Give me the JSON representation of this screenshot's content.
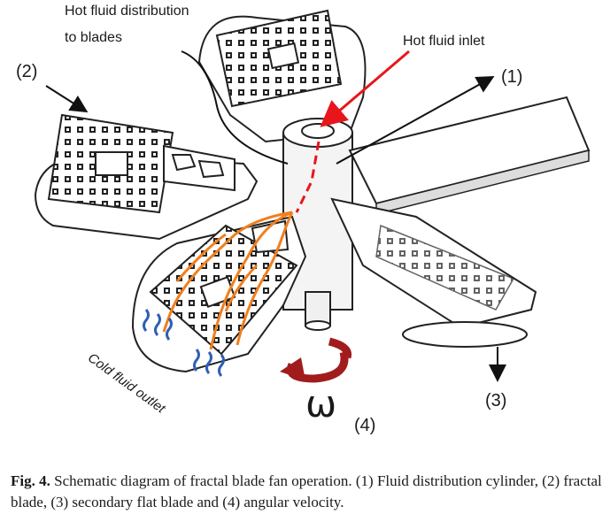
{
  "figure": {
    "labels": {
      "hot_fluid_distribution_line1": "Hot fluid distribution",
      "hot_fluid_distribution_line2": "to blades",
      "hot_fluid_inlet": "Hot fluid inlet",
      "marker_1": "(1)",
      "marker_2": "(2)",
      "marker_3": "(3)",
      "marker_4": "(4)",
      "omega": "ω",
      "cold_fluid_outlet": "Cold fluid outlet"
    },
    "colors": {
      "hot_fluid_path": "#e8161a",
      "distribution_channels": "#f07f1e",
      "cold_outlet_arrows": "#2f5fb4",
      "rotation_arrow": "#a11c1c",
      "line_art": "#222222"
    }
  },
  "caption": {
    "label": "Fig. 4.",
    "text": "Schematic diagram of fractal blade fan operation. (1) Fluid distribution cylinder, (2) fractal blade, (3) secondary flat blade and (4) angular velocity."
  }
}
